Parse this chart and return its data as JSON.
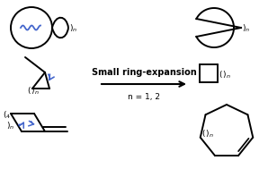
{
  "title": "Small ring-expansion",
  "subtitle": "n = 1, 2",
  "black_color": "#000000",
  "blue_color": "#4466CC",
  "bg_color": "#ffffff",
  "lw": 1.4
}
